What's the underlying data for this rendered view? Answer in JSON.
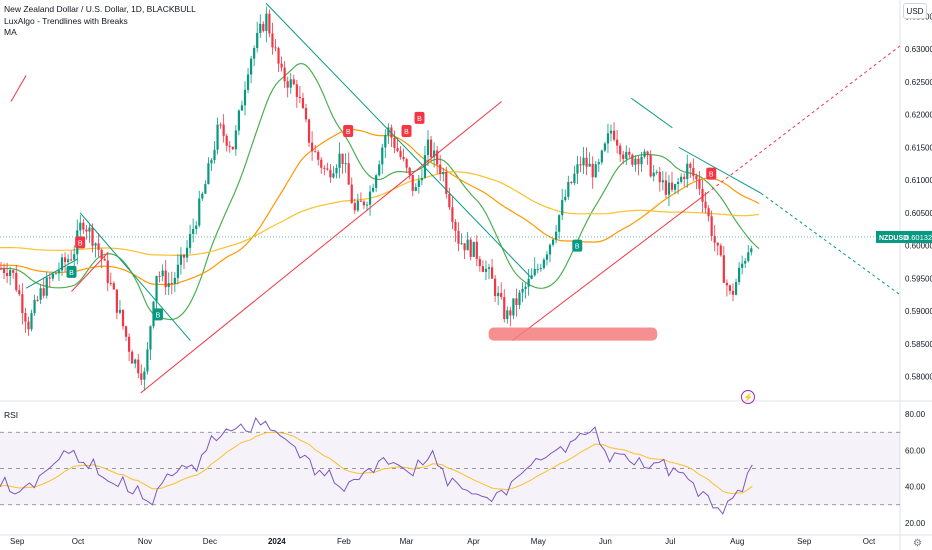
{
  "header": {
    "title": "New Zealand Dollar / U.S. Dollar, 1D, BLACKBULL",
    "indicator1": "LuxAlgo - Trendlines with Breaks",
    "indicator2": "MA",
    "currency": "USD",
    "rsi_label": "RSI"
  },
  "price_tag": {
    "symbol": "NZDUSD",
    "value": "0.60132"
  },
  "colors": {
    "up": "#089981",
    "down": "#f23645",
    "ma_green": "#4caf50",
    "ma_orange": "#ff9800",
    "ma_yellow": "#fbc02d",
    "rsi": "#7e57c2",
    "rsi_ma": "#fbc02d",
    "support": "#f47c7c"
  },
  "chart_data": [
    {
      "type": "candlestick",
      "title": "New Zealand Dollar / U.S. Dollar, 1D, BLACKBULL",
      "x_ticks": [
        "Sep",
        "Oct",
        "Nov",
        "Dec",
        "2024",
        "Feb",
        "Mar",
        "Apr",
        "May",
        "Jun",
        "Jul",
        "Aug",
        "Sep",
        "Oct"
      ],
      "y_ticks": [
        "0.63500",
        "0.63000",
        "0.62500",
        "0.62000",
        "0.61500",
        "0.61000",
        "0.60500",
        "0.60000",
        "0.59500",
        "0.59000",
        "0.58500",
        "0.58000"
      ],
      "ylim": [
        0.5775,
        0.6375
      ],
      "last_price": 0.60132,
      "close_path": [
        [
          "2023-08-31",
          0.5965
        ],
        [
          "2023-09-08",
          0.588
        ],
        [
          "2023-09-14",
          0.593
        ],
        [
          "2023-09-21",
          0.596
        ],
        [
          "2023-09-29",
          0.599
        ],
        [
          "2023-10-03",
          0.604
        ],
        [
          "2023-10-10",
          0.6
        ],
        [
          "2023-10-18",
          0.592
        ],
        [
          "2023-10-26",
          0.583
        ],
        [
          "2023-11-01",
          0.58
        ],
        [
          "2023-11-06",
          0.596
        ],
        [
          "2023-11-13",
          0.594
        ],
        [
          "2023-11-20",
          0.599
        ],
        [
          "2023-11-28",
          0.608
        ],
        [
          "2023-12-05",
          0.618
        ],
        [
          "2023-12-12",
          0.615
        ],
        [
          "2023-12-19",
          0.628
        ],
        [
          "2023-12-27",
          0.635
        ],
        [
          "2024-01-03",
          0.626
        ],
        [
          "2024-01-10",
          0.624
        ],
        [
          "2024-01-17",
          0.615
        ],
        [
          "2024-01-24",
          0.611
        ],
        [
          "2024-01-31",
          0.614
        ],
        [
          "2024-02-06",
          0.605
        ],
        [
          "2024-02-13",
          0.608
        ],
        [
          "2024-02-21",
          0.618
        ],
        [
          "2024-02-28",
          0.613
        ],
        [
          "2024-03-05",
          0.608
        ],
        [
          "2024-03-11",
          0.615
        ],
        [
          "2024-03-18",
          0.611
        ],
        [
          "2024-03-25",
          0.601
        ],
        [
          "2024-04-02",
          0.599
        ],
        [
          "2024-04-09",
          0.595
        ],
        [
          "2024-04-16",
          0.589
        ],
        [
          "2024-04-22",
          0.592
        ],
        [
          "2024-04-30",
          0.596
        ],
        [
          "2024-05-07",
          0.601
        ],
        [
          "2024-05-14",
          0.608
        ],
        [
          "2024-05-21",
          0.613
        ],
        [
          "2024-05-28",
          0.611
        ],
        [
          "2024-06-04",
          0.618
        ],
        [
          "2024-06-11",
          0.613
        ],
        [
          "2024-06-18",
          0.614
        ],
        [
          "2024-06-25",
          0.61
        ],
        [
          "2024-07-02",
          0.608
        ],
        [
          "2024-07-09",
          0.612
        ],
        [
          "2024-07-15",
          0.609
        ],
        [
          "2024-07-22",
          0.6
        ],
        [
          "2024-07-29",
          0.592
        ],
        [
          "2024-08-02",
          0.596
        ],
        [
          "2024-08-08",
          0.6013
        ]
      ],
      "signal_labels": [
        "B",
        "B",
        "B",
        "B",
        "B",
        "B",
        "B",
        "B"
      ],
      "support_zone": [
        0.5855,
        0.5875
      ]
    },
    {
      "type": "line",
      "title": "RSI",
      "y_ticks": [
        "80.00",
        "60.00",
        "40.00",
        "20.00"
      ],
      "ylim": [
        15,
        85
      ],
      "bands": [
        30,
        50,
        70
      ],
      "series": [
        {
          "values": [
            40,
            36,
            42,
            48,
            55,
            60,
            50,
            45,
            40,
            36,
            32,
            42,
            48,
            52,
            60,
            68,
            72,
            70,
            76,
            68,
            62,
            55,
            46,
            40,
            44,
            50,
            56,
            52,
            46,
            55,
            50,
            42,
            36,
            34,
            38,
            45,
            52,
            56,
            62,
            66,
            70,
            60,
            58,
            52,
            50,
            55,
            48,
            42,
            35,
            25,
            38,
            52
          ]
        }
      ]
    }
  ]
}
